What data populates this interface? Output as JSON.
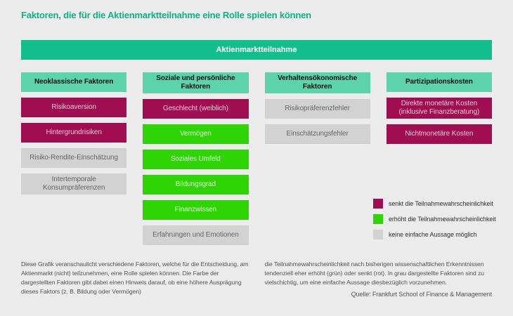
{
  "page": {
    "title": "Faktoren, die für die Aktienmarktteilnahme eine Rolle spielen können"
  },
  "colors": {
    "background": "#ececec",
    "title": "#0fb183",
    "root_bar": "#12be8b",
    "column_header": "#5cd3aa",
    "negative": "#a00d50",
    "positive": "#2fd405",
    "neutral": "#d2d2d2"
  },
  "root_node": {
    "label": "Aktienmarktteilnahme"
  },
  "columns": [
    {
      "header": "Neoklassische Faktoren",
      "items": [
        {
          "label": "Risikoaversion",
          "effect": "negative"
        },
        {
          "label": "Hintergrundrisiken",
          "effect": "negative"
        },
        {
          "label": "Risiko-Rendite-Einschätzung",
          "effect": "neutral"
        },
        {
          "label": "Intertemporale Konsumpräferenzen",
          "effect": "neutral"
        }
      ]
    },
    {
      "header": "Soziale und persönliche Faktoren",
      "items": [
        {
          "label": "Geschlecht (weiblich)",
          "effect": "negative"
        },
        {
          "label": "Vermögen",
          "effect": "positive"
        },
        {
          "label": "Soziales Umfeld",
          "effect": "positive"
        },
        {
          "label": "Bildungsgrad",
          "effect": "positive"
        },
        {
          "label": "Finanzwissen",
          "effect": "positive"
        },
        {
          "label": "Erfahrungen und Emotionen",
          "effect": "neutral"
        }
      ]
    },
    {
      "header": "Verhaltensökonomische Faktoren",
      "items": [
        {
          "label": "Risikopräferenzfehler",
          "effect": "neutral"
        },
        {
          "label": "Einschätzungsfehler",
          "effect": "neutral"
        }
      ]
    },
    {
      "header": "Partizipationskosten",
      "items": [
        {
          "label": "Direkte monetäre Kosten (inklusive Finanzberatung)",
          "effect": "negative"
        },
        {
          "label": "Nichtmonetäre Kosten",
          "effect": "negative"
        }
      ]
    }
  ],
  "legend": [
    {
      "color_key": "negative",
      "label": "senkt die Teilnahmewahrscheinlichkeit"
    },
    {
      "color_key": "positive",
      "label": "erhöht die Teilnahmewahrscheinlichkeit"
    },
    {
      "color_key": "neutral",
      "label": "keine einfache Aussage möglich"
    }
  ],
  "footnote": {
    "left": "Diese Grafik veranschaulicht verschiedene Faktoren, welche für die Entscheidung, am Aktienmarkt (nicht) teilzunehmen, eine Rolle spielen können. Die Farbe der dargestellten Faktoren gibt dabei einen Hinweis darauf, ob eine höhere Ausprägung dieses Faktors (z. B. Bildung oder Vermögen)",
    "right": "die Teilnahmewahrscheinlichkeit nach bisherigen wissenschaftlichen Erkenntnissen tendenziell eher erhöht (grün) oder senkt (rot). In grau dargestellte Faktoren sind zu vielschichtig, um eine einfache Aussage diesbezüglich vorzunehmen.",
    "source": "Quelle: Frankfurt School of Finance & Management"
  }
}
